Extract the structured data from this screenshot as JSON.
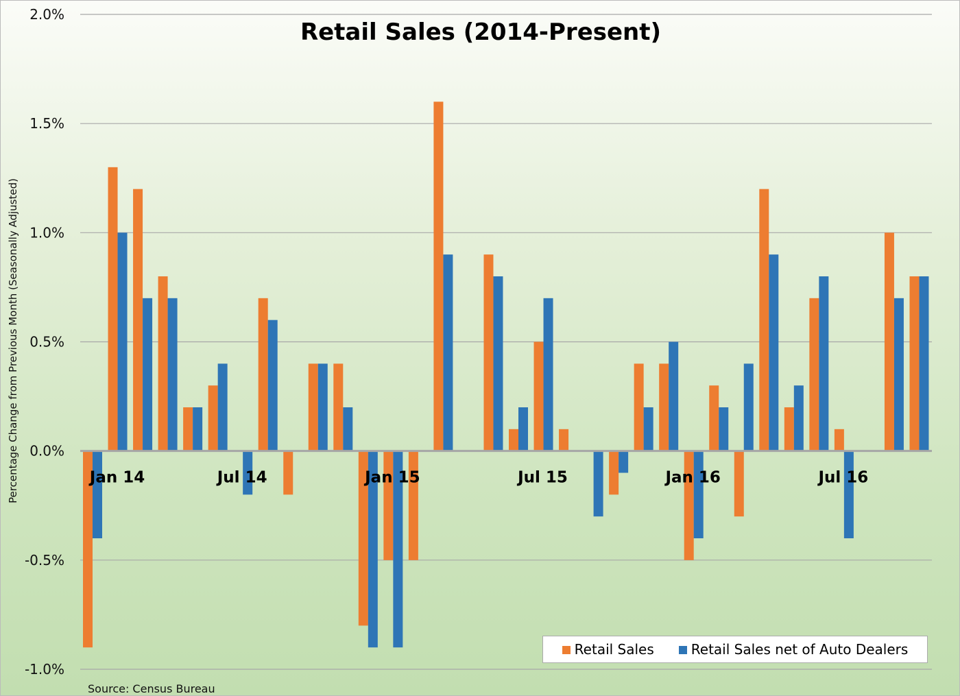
{
  "chart_data": {
    "type": "bar",
    "title": "Retail Sales (2014-Present)",
    "ylabel": "Percentage Change from Previous Month (Seasonally Adjusted)",
    "xlabel": "",
    "source": "Source: Census Bureau",
    "ylim": [
      -1.0,
      2.0
    ],
    "yticks": [
      -1.0,
      -0.5,
      0.0,
      0.5,
      1.0,
      1.5,
      2.0
    ],
    "ytick_labels": [
      "-1.0%",
      "-0.5%",
      "0.0%",
      "0.5%",
      "1.0%",
      "1.5%",
      "2.0%"
    ],
    "x_tick_labels": [
      {
        "index": 0,
        "label": "Jan 14"
      },
      {
        "index": 6,
        "label": "Jul 14"
      },
      {
        "index": 12,
        "label": "Jan 15"
      },
      {
        "index": 18,
        "label": "Jul 15"
      },
      {
        "index": 24,
        "label": "Jan 16"
      },
      {
        "index": 30,
        "label": "Jul 16"
      }
    ],
    "categories": [
      "Jan 14",
      "Feb 14",
      "Mar 14",
      "Apr 14",
      "May 14",
      "Jun 14",
      "Jul 14",
      "Aug 14",
      "Sep 14",
      "Oct 14",
      "Nov 14",
      "Dec 14",
      "Jan 15",
      "Feb 15",
      "Mar 15",
      "Apr 15",
      "May 15",
      "Jun 15",
      "Jul 15",
      "Aug 15",
      "Sep 15",
      "Oct 15",
      "Nov 15",
      "Dec 15",
      "Jan 16",
      "Feb 16",
      "Mar 16",
      "Apr 16",
      "May 16",
      "Jun 16",
      "Jul 16",
      "Aug 16",
      "Sep 16",
      "Oct 16"
    ],
    "series": [
      {
        "name": "Retail Sales",
        "color": "#ed7d31",
        "values": [
          -0.9,
          1.3,
          1.2,
          0.8,
          0.2,
          0.3,
          0.0,
          0.7,
          -0.2,
          0.4,
          0.4,
          -0.8,
          -0.5,
          -0.5,
          1.6,
          0.0,
          0.9,
          0.1,
          0.5,
          0.1,
          0.0,
          -0.2,
          0.4,
          0.4,
          -0.5,
          0.3,
          -0.3,
          1.2,
          0.2,
          0.7,
          0.1,
          0.0,
          1.0,
          0.8
        ]
      },
      {
        "name": "Retail Sales net of Auto Dealers",
        "color": "#2e75b6",
        "values": [
          -0.4,
          1.0,
          0.7,
          0.7,
          0.2,
          0.4,
          -0.2,
          0.6,
          0.0,
          0.4,
          0.2,
          -0.9,
          -0.9,
          0.0,
          0.9,
          0.0,
          0.8,
          0.2,
          0.7,
          0.0,
          -0.3,
          -0.1,
          0.2,
          0.5,
          -0.4,
          0.2,
          0.4,
          0.9,
          0.3,
          0.8,
          -0.4,
          0.0,
          0.7,
          0.8
        ]
      }
    ],
    "grid": true,
    "legend": "bottom-right"
  }
}
